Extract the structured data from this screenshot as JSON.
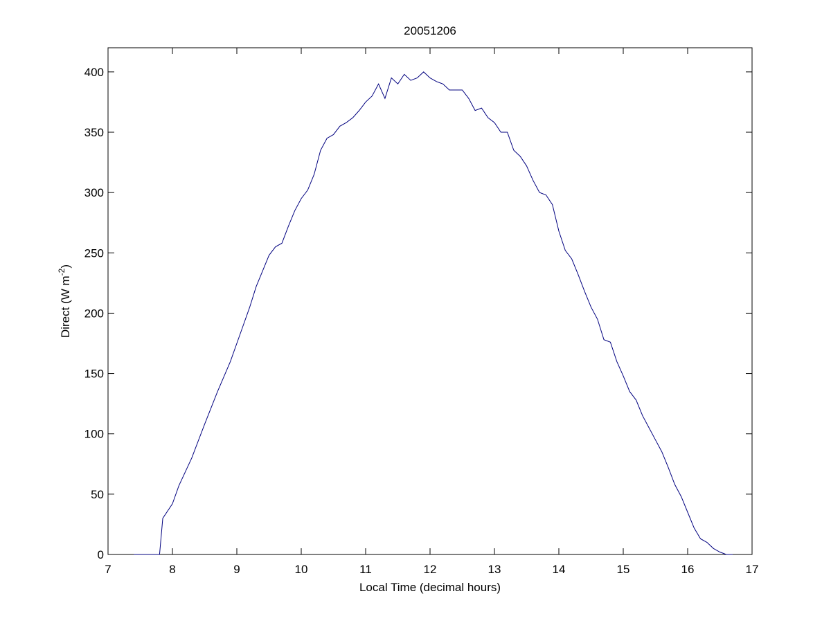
{
  "chart_data": {
    "type": "line",
    "title": "20051206",
    "xlabel": "Local Time (decimal hours)",
    "ylabel_parts": [
      "Direct (W m",
      "-2",
      ")"
    ],
    "xlim": [
      7,
      17
    ],
    "xticks": [
      7,
      8,
      9,
      10,
      11,
      12,
      13,
      14,
      15,
      16,
      17
    ],
    "ylim": [
      0,
      420
    ],
    "yticks": [
      0,
      50,
      100,
      150,
      200,
      250,
      300,
      350,
      400
    ],
    "grid": false,
    "series": [
      {
        "color": "#00007f",
        "x": [
          7.4,
          7.8,
          7.85,
          8.0,
          8.1,
          8.3,
          8.5,
          8.7,
          8.9,
          9.0,
          9.1,
          9.2,
          9.3,
          9.4,
          9.5,
          9.6,
          9.7,
          9.8,
          9.9,
          10.0,
          10.1,
          10.2,
          10.3,
          10.4,
          10.5,
          10.6,
          10.7,
          10.8,
          10.9,
          11.0,
          11.1,
          11.2,
          11.3,
          11.4,
          11.5,
          11.6,
          11.7,
          11.8,
          11.9,
          12.0,
          12.1,
          12.2,
          12.3,
          12.4,
          12.5,
          12.6,
          12.7,
          12.8,
          12.9,
          13.0,
          13.1,
          13.2,
          13.3,
          13.4,
          13.5,
          13.6,
          13.7,
          13.8,
          13.9,
          14.0,
          14.1,
          14.2,
          14.3,
          14.4,
          14.5,
          14.6,
          14.7,
          14.8,
          14.9,
          15.0,
          15.1,
          15.2,
          15.3,
          15.4,
          15.5,
          15.6,
          15.7,
          15.8,
          15.9,
          16.0,
          16.1,
          16.2,
          16.3,
          16.4,
          16.5,
          16.6,
          16.7
        ],
        "values": [
          0,
          0,
          30,
          42,
          57,
          80,
          108,
          135,
          160,
          175,
          190,
          205,
          222,
          235,
          248,
          255,
          258,
          272,
          285,
          295,
          302,
          315,
          335,
          345,
          348,
          355,
          358,
          362,
          368,
          375,
          380,
          390,
          378,
          395,
          390,
          398,
          393,
          395,
          400,
          395,
          392,
          390,
          385,
          385,
          385,
          378,
          368,
          370,
          362,
          358,
          350,
          350,
          335,
          330,
          322,
          310,
          300,
          298,
          290,
          268,
          252,
          245,
          232,
          218,
          205,
          195,
          178,
          176,
          160,
          148,
          135,
          128,
          115,
          105,
          95,
          85,
          72,
          58,
          48,
          35,
          22,
          13,
          10,
          5,
          2,
          0,
          0
        ]
      }
    ]
  }
}
